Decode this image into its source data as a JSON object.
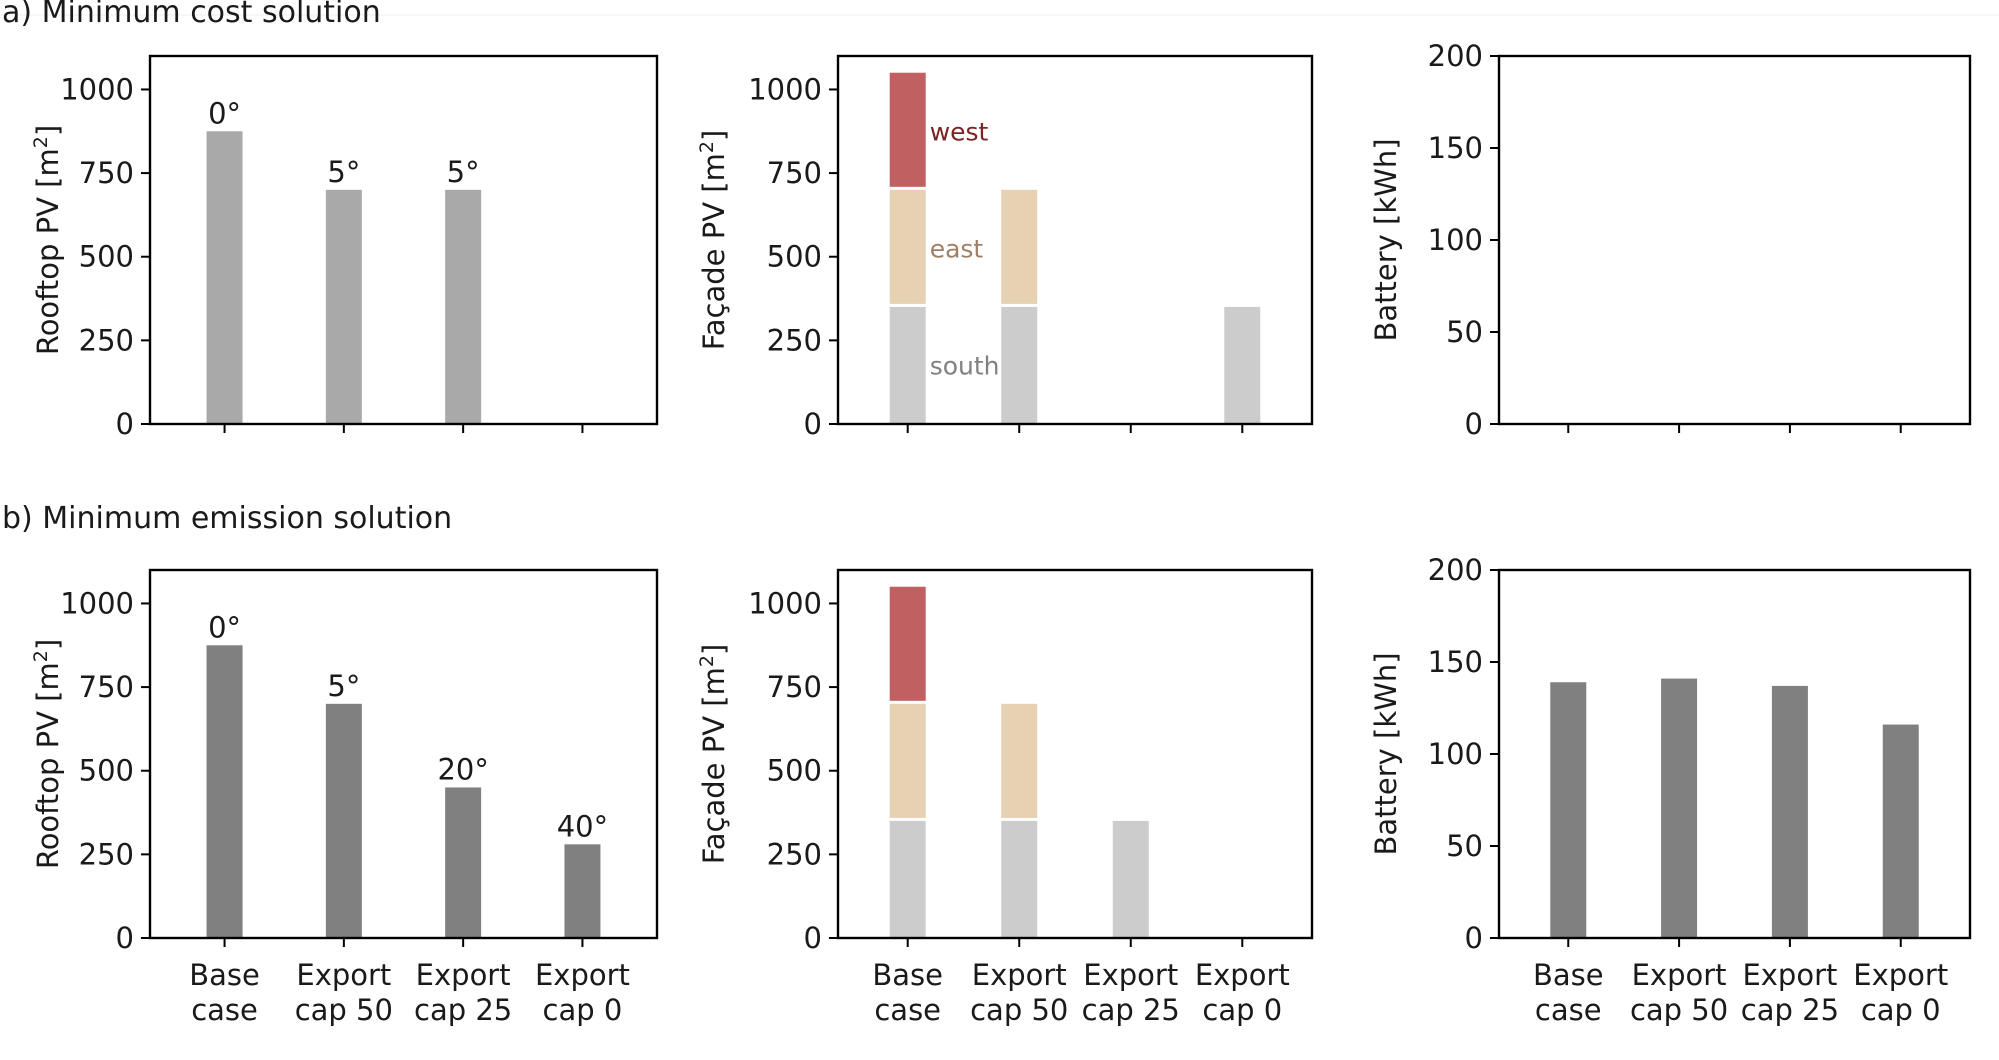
{
  "panel_titles": [
    "a) Minimum cost solution",
    "b) Minimum emission solution"
  ],
  "colors": {
    "rooftop_cost": "#a9a9a9",
    "rooftop_emission": "#808080",
    "battery": "#808080",
    "south": "#cccccc",
    "east": "#e6d1b3",
    "west": "#c06060",
    "west_label": "#7a2424",
    "east_label": "#9e8068",
    "south_label": "#808080"
  },
  "chart_data": [
    {
      "id": "a-rooftop",
      "type": "bar",
      "row": 0,
      "col": 0,
      "categories": [
        "Base case",
        "Export cap 50",
        "Export cap 25",
        "Export cap 0"
      ],
      "values": [
        875,
        700,
        700,
        0
      ],
      "bar_labels": [
        "0°",
        "5°",
        "5°",
        ""
      ],
      "ylabel": "Rooftop PV [m²]",
      "ylim": [
        0,
        1100
      ],
      "yticks": [
        0,
        250,
        500,
        750,
        1000
      ],
      "show_xticklabels": false
    },
    {
      "id": "a-facade",
      "type": "bar",
      "stacked": true,
      "row": 0,
      "col": 1,
      "categories": [
        "Base case",
        "Export cap 50",
        "Export cap 25",
        "Export cap 0"
      ],
      "series": [
        {
          "name": "south",
          "values": [
            350,
            350,
            0,
            350
          ]
        },
        {
          "name": "east",
          "values": [
            350,
            350,
            0,
            0
          ]
        },
        {
          "name": "west",
          "values": [
            350,
            0,
            0,
            0
          ]
        }
      ],
      "series_labels": [
        "south",
        "east",
        "west"
      ],
      "ylabel": "Façade PV [m²]",
      "ylim": [
        0,
        1100
      ],
      "yticks": [
        0,
        250,
        500,
        750,
        1000
      ],
      "show_xticklabels": false
    },
    {
      "id": "a-battery",
      "type": "bar",
      "row": 0,
      "col": 2,
      "categories": [
        "Base case",
        "Export cap 50",
        "Export cap 25",
        "Export cap 0"
      ],
      "values": [
        0,
        0,
        0,
        0
      ],
      "ylabel": "Battery [kWh]",
      "ylim": [
        0,
        200
      ],
      "yticks": [
        0,
        50,
        100,
        150,
        200
      ],
      "show_xticklabels": false
    },
    {
      "id": "b-rooftop",
      "type": "bar",
      "row": 1,
      "col": 0,
      "categories": [
        "Base case",
        "Export cap 50",
        "Export cap 25",
        "Export cap 0"
      ],
      "values": [
        875,
        700,
        450,
        280
      ],
      "bar_labels": [
        "0°",
        "5°",
        "20°",
        "40°"
      ],
      "ylabel": "Rooftop PV [m²]",
      "ylim": [
        0,
        1100
      ],
      "yticks": [
        0,
        250,
        500,
        750,
        1000
      ],
      "show_xticklabels": true
    },
    {
      "id": "b-facade",
      "type": "bar",
      "stacked": true,
      "row": 1,
      "col": 1,
      "categories": [
        "Base case",
        "Export cap 50",
        "Export cap 25",
        "Export cap 0"
      ],
      "series": [
        {
          "name": "south",
          "values": [
            350,
            350,
            350,
            0
          ]
        },
        {
          "name": "east",
          "values": [
            350,
            350,
            0,
            0
          ]
        },
        {
          "name": "west",
          "values": [
            350,
            0,
            0,
            0
          ]
        }
      ],
      "ylabel": "Façade PV [m²]",
      "ylim": [
        0,
        1100
      ],
      "yticks": [
        0,
        250,
        500,
        750,
        1000
      ],
      "show_xticklabels": true
    },
    {
      "id": "b-battery",
      "type": "bar",
      "row": 1,
      "col": 2,
      "categories": [
        "Base case",
        "Export cap 50",
        "Export cap 25",
        "Export cap 0"
      ],
      "values": [
        139,
        141,
        137,
        116
      ],
      "ylabel": "Battery [kWh]",
      "ylim": [
        0,
        200
      ],
      "yticks": [
        0,
        50,
        100,
        150,
        200
      ],
      "show_xticklabels": true
    }
  ],
  "xtick_lines": [
    [
      "Base",
      "case"
    ],
    [
      "Export",
      "cap 50"
    ],
    [
      "Export",
      "cap 25"
    ],
    [
      "Export",
      "cap 0"
    ]
  ]
}
